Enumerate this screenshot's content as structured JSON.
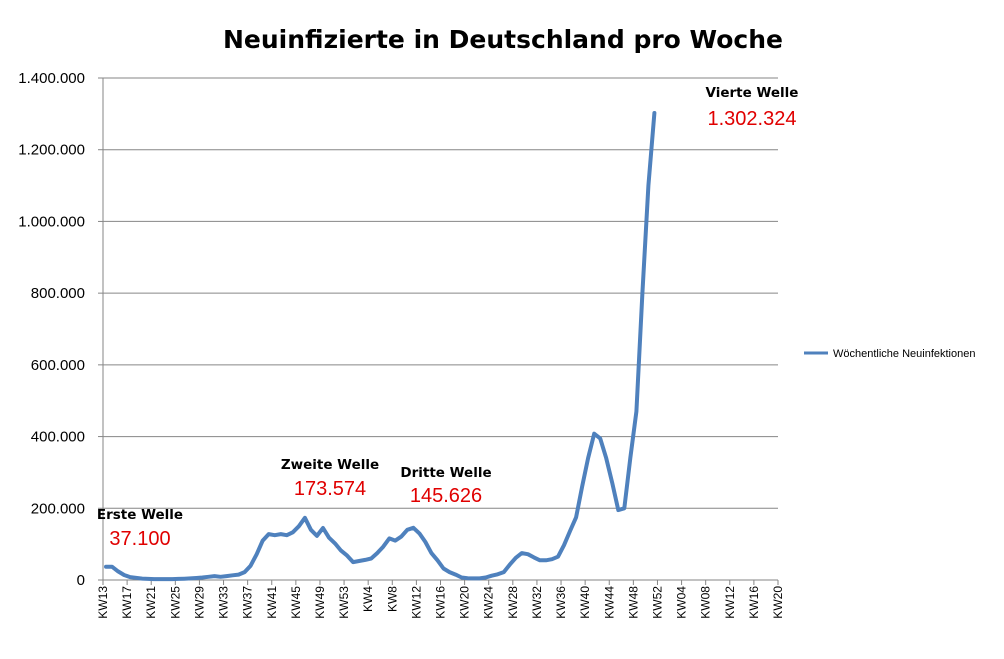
{
  "chart_data": {
    "type": "line",
    "title": "Neuinfizierte in Deutschland pro Woche",
    "xlabel": "",
    "ylabel": "",
    "ylim": [
      0,
      1400000
    ],
    "yticks": [
      "0",
      "200.000",
      "400.000",
      "600.000",
      "800.000",
      "1.000.000",
      "1.200.000",
      "1.400.000"
    ],
    "grid": true,
    "legend_position": "right",
    "x_ticks": [
      "KW13",
      "KW17",
      "KW21",
      "KW25",
      "KW29",
      "KW33",
      "KW37",
      "KW41",
      "KW45",
      "KW49",
      "KW53",
      "KW4",
      "KW8",
      "KW12",
      "KW16",
      "KW20",
      "KW24",
      "KW28",
      "KW32",
      "KW36",
      "KW40",
      "KW44",
      "KW48",
      "KW52",
      "KW04",
      "KW08",
      "KW12",
      "KW16",
      "KW20"
    ],
    "series": [
      {
        "name": "Wöchentliche Neuinfektionen",
        "color": "#4f81bd",
        "values": [
          37100,
          37100,
          24000,
          14000,
          8000,
          6000,
          4000,
          3000,
          2500,
          2500,
          2500,
          2500,
          3000,
          3500,
          4500,
          5500,
          7000,
          9000,
          11000,
          9000,
          11000,
          13000,
          15000,
          22000,
          40000,
          72000,
          110000,
          128000,
          125000,
          128000,
          125000,
          133000,
          150000,
          173574,
          140000,
          123000,
          145000,
          118000,
          102000,
          82000,
          68000,
          50000,
          53000,
          56000,
          60000,
          75000,
          93000,
          116000,
          110000,
          121000,
          140000,
          145626,
          130000,
          106000,
          75000,
          55000,
          32000,
          22000,
          15000,
          7000,
          5000,
          4500,
          4500,
          7000,
          12000,
          16000,
          22000,
          43000,
          62000,
          75000,
          72000,
          63000,
          55000,
          55000,
          58000,
          65000,
          97000,
          137000,
          175000,
          260000,
          340000,
          408000,
          395000,
          340000,
          270000,
          195000,
          200000,
          340000,
          470000,
          800000,
          1100000,
          1302324
        ]
      }
    ],
    "annotations": [
      {
        "label": "Erste Welle",
        "value_text": "37.100"
      },
      {
        "label": "Zweite Welle",
        "value_text": "173.574"
      },
      {
        "label": "Dritte Welle",
        "value_text": "145.626"
      },
      {
        "label": "Vierte Welle",
        "value_text": "1.302.324"
      }
    ]
  }
}
